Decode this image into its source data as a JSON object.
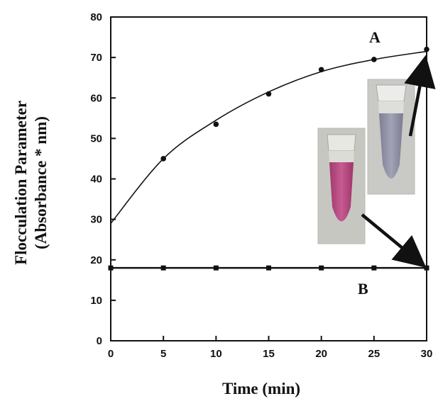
{
  "chart_data": {
    "type": "line",
    "title": "",
    "xlabel": "Time (min)",
    "ylabel_line1": "Flocculation Parameter",
    "ylabel_line2": "(Absorbance * nm)",
    "xlim": [
      0,
      30
    ],
    "ylim": [
      0,
      80
    ],
    "x_ticks": [
      0,
      5,
      10,
      15,
      20,
      25,
      30
    ],
    "y_ticks": [
      0,
      10,
      20,
      30,
      40,
      50,
      60,
      70,
      80
    ],
    "grid": false,
    "series": [
      {
        "name": "A",
        "x": [
          5,
          10,
          15,
          20,
          25,
          30
        ],
        "values": [
          45,
          53.5,
          61,
          67,
          69.5,
          72
        ],
        "fit_curve": {
          "x": [
            0,
            5,
            10,
            15,
            20,
            25,
            30
          ],
          "values": [
            29,
            45,
            54.5,
            61.5,
            66.5,
            69.5,
            71.5
          ]
        },
        "color": "#111111"
      },
      {
        "name": "B",
        "x": [
          0,
          5,
          10,
          15,
          20,
          25,
          30
        ],
        "values": [
          18,
          18,
          18,
          18,
          18,
          18,
          18
        ],
        "color": "#111111"
      }
    ],
    "insets": [
      {
        "name": "pink-tube-photo",
        "liquid_color": "#b3427a"
      },
      {
        "name": "gray-blue-tube-photo",
        "liquid_color": "#8f8fa6"
      }
    ]
  }
}
